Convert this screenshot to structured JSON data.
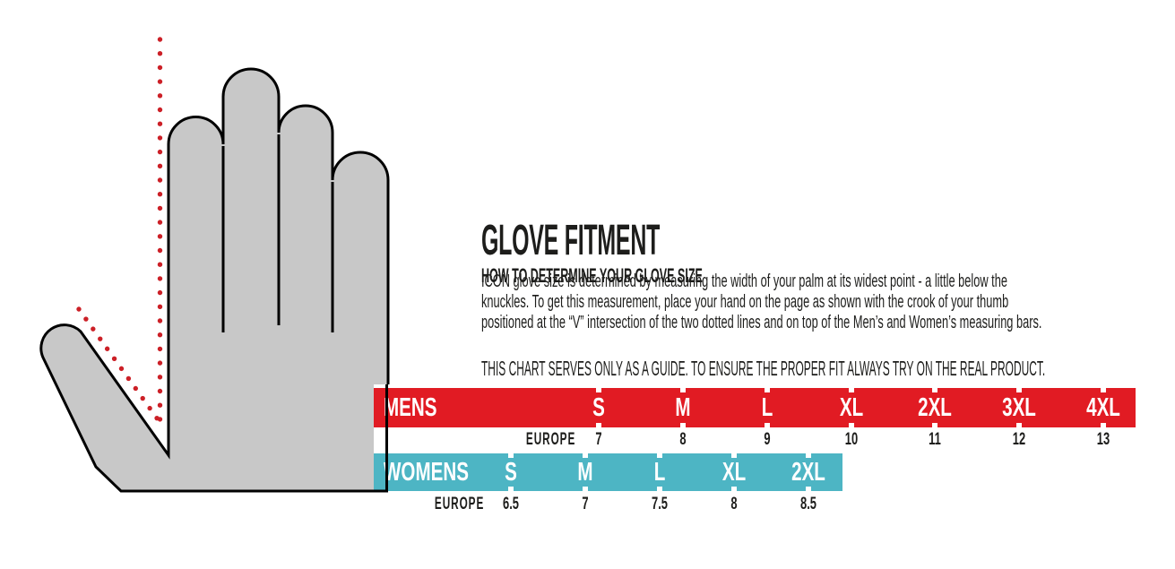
{
  "title": "GLOVE FITMENT",
  "subtitle": "HOW TO DETERMINE YOUR GLOVE SIZE",
  "body_lines": [
    "ICON glove size is determined by measuring the width of your palm at its widest point - a little below the",
    "knuckles. To get this measurement, place your hand on the page as shown with the crook of your thumb",
    "positioned at the “V” intersection of the two dotted lines and on top of the Men’s and Women’s measuring bars."
  ],
  "guide_note": "THIS CHART SERVES ONLY AS A GUIDE. TO ENSURE THE PROPER FIT ALWAYS TRY ON THE REAL PRODUCT.",
  "colors": {
    "mens_bar": "#e11b23",
    "womens_bar": "#4db5c4",
    "hand_fill": "#c8c8c8",
    "hand_outline": "#000000",
    "dotted_line": "#cc2027",
    "ink": "#1d1d1b"
  },
  "size_chart": {
    "region_label": "EUROPE",
    "mens": {
      "label": "MENS",
      "sizes": [
        {
          "size": "S",
          "europe": "7"
        },
        {
          "size": "M",
          "europe": "8"
        },
        {
          "size": "L",
          "europe": "9"
        },
        {
          "size": "XL",
          "europe": "10"
        },
        {
          "size": "2XL",
          "europe": "11"
        },
        {
          "size": "3XL",
          "europe": "12"
        },
        {
          "size": "4XL",
          "europe": "13"
        }
      ]
    },
    "womens": {
      "label": "WOMENS",
      "sizes": [
        {
          "size": "S",
          "europe": "6.5"
        },
        {
          "size": "M",
          "europe": "7"
        },
        {
          "size": "L",
          "europe": "7.5"
        },
        {
          "size": "XL",
          "europe": "8"
        },
        {
          "size": "2XL",
          "europe": "8.5"
        }
      ]
    }
  }
}
